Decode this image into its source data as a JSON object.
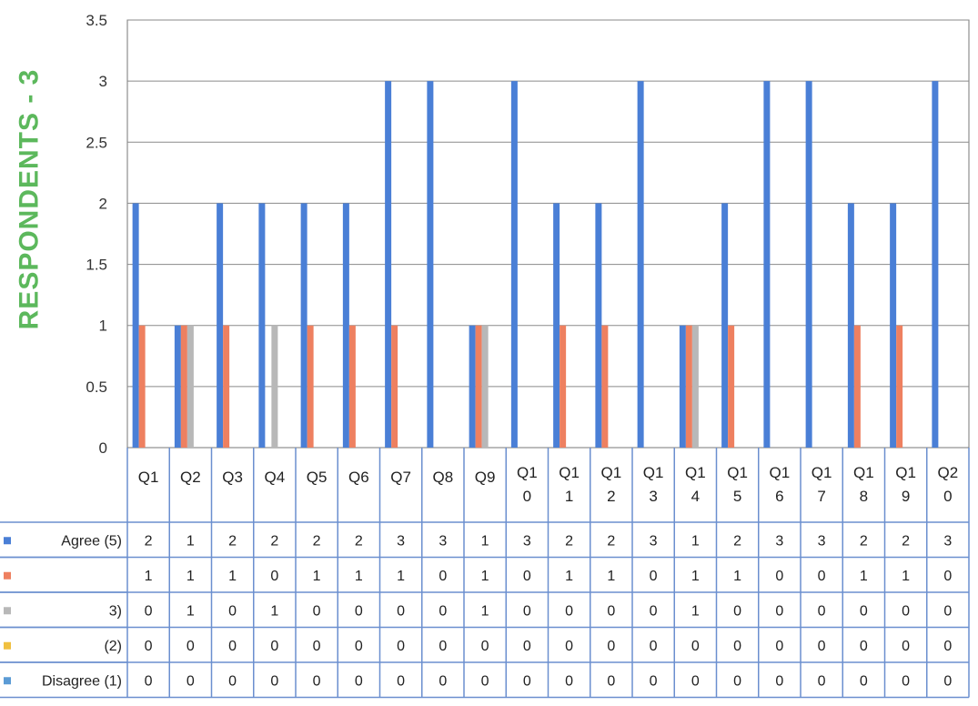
{
  "side_title": "RESPONDENTS - 3",
  "chart_data": {
    "type": "bar",
    "ylim": [
      0,
      3.5
    ],
    "yticks": [
      "0",
      "0.5",
      "1",
      "1.5",
      "2",
      "2.5",
      "3",
      "3.5"
    ],
    "grid": true,
    "categories": [
      "Q1",
      "Q2",
      "Q3",
      "Q4",
      "Q5",
      "Q6",
      "Q7",
      "Q8",
      "Q9",
      "Q10",
      "Q11",
      "Q12",
      "Q13",
      "Q14",
      "Q15",
      "Q16",
      "Q17",
      "Q18",
      "Q19",
      "Q20"
    ],
    "category_lines": [
      [
        "Q1"
      ],
      [
        "Q2"
      ],
      [
        "Q3"
      ],
      [
        "Q4"
      ],
      [
        "Q5"
      ],
      [
        "Q6"
      ],
      [
        "Q7"
      ],
      [
        "Q8"
      ],
      [
        "Q9"
      ],
      [
        "Q1",
        "0"
      ],
      [
        "Q1",
        "1"
      ],
      [
        "Q1",
        "2"
      ],
      [
        "Q1",
        "3"
      ],
      [
        "Q1",
        "4"
      ],
      [
        "Q1",
        "5"
      ],
      [
        "Q1",
        "6"
      ],
      [
        "Q1",
        "7"
      ],
      [
        "Q1",
        "8"
      ],
      [
        "Q1",
        "9"
      ],
      [
        "Q2",
        "0"
      ]
    ],
    "series": [
      {
        "name": "Agree (5)",
        "color": "#4a7fd6",
        "values": [
          2,
          1,
          2,
          2,
          2,
          2,
          3,
          3,
          1,
          3,
          2,
          2,
          3,
          1,
          2,
          3,
          3,
          2,
          2,
          3
        ]
      },
      {
        "name": "",
        "color": "#ee8060",
        "values": [
          1,
          1,
          1,
          0,
          1,
          1,
          1,
          0,
          1,
          0,
          1,
          1,
          0,
          1,
          1,
          0,
          0,
          1,
          1,
          0
        ]
      },
      {
        "name": "3)",
        "color": "#b8b8b8",
        "values": [
          0,
          1,
          0,
          1,
          0,
          0,
          0,
          0,
          1,
          0,
          0,
          0,
          0,
          1,
          0,
          0,
          0,
          0,
          0,
          0
        ]
      },
      {
        "name": "(2)",
        "color": "#f0c040",
        "values": [
          0,
          0,
          0,
          0,
          0,
          0,
          0,
          0,
          0,
          0,
          0,
          0,
          0,
          0,
          0,
          0,
          0,
          0,
          0,
          0
        ]
      },
      {
        "name": "Disagree (1)",
        "color": "#5b9bd5",
        "values": [
          0,
          0,
          0,
          0,
          0,
          0,
          0,
          0,
          0,
          0,
          0,
          0,
          0,
          0,
          0,
          0,
          0,
          0,
          0,
          0
        ]
      }
    ]
  }
}
